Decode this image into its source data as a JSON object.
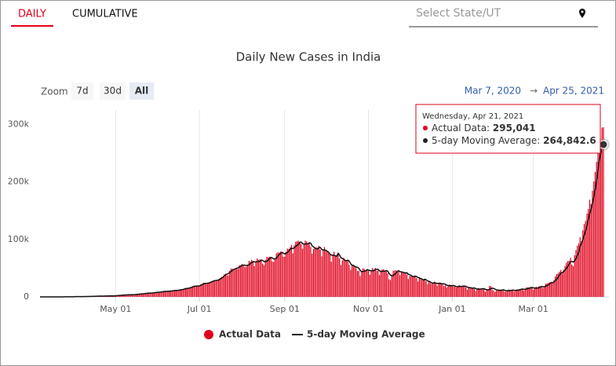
{
  "tabs": {
    "items": [
      "DAILY",
      "CUMULATIVE"
    ],
    "active": 0
  },
  "search": {
    "placeholder": "Select State/UT"
  },
  "chart_data": {
    "type": "bar",
    "title": "Daily New Cases in India",
    "range_selector": {
      "zoom_label": "Zoom",
      "buttons": [
        "7d",
        "30d",
        "All"
      ],
      "active": 2,
      "from": "Mar 7, 2020",
      "separator": "→",
      "to": "Apr 25, 2021"
    },
    "xlim": [
      "2020-03-07",
      "2021-04-25"
    ],
    "xticks": [
      {
        "value": "2020-05-01",
        "label": "May 01"
      },
      {
        "value": "2020-07-01",
        "label": "Jul 01"
      },
      {
        "value": "2020-09-01",
        "label": "Sep 01"
      },
      {
        "value": "2020-11-01",
        "label": "Nov 01"
      },
      {
        "value": "2021-01-01",
        "label": "Jan 01"
      },
      {
        "value": "2021-03-01",
        "label": "Mar 01"
      }
    ],
    "ylim": [
      0,
      325000
    ],
    "yticks": [
      0,
      {
        "value": 100000,
        "label": "100k"
      },
      {
        "value": 200000,
        "label": "200k"
      },
      {
        "value": 300000,
        "label": "300k"
      }
    ],
    "grid": true,
    "series": [
      {
        "name": "Actual Data",
        "color": "#e0001b",
        "values": [
          3,
          1,
          5,
          9,
          18,
          12,
          11,
          14,
          12,
          24,
          22,
          28,
          52,
          59,
          76,
          82,
          96,
          74,
          87,
          88,
          160,
          110,
          180,
          140,
          230,
          400,
          550,
          520,
          600,
          480,
          620,
          530,
          580,
          610,
          700,
          900,
          850,
          880,
          1100,
          1000,
          1300,
          1100,
          1250,
          1450,
          1550,
          1300,
          1450,
          1650,
          1800,
          1700,
          1650,
          1600,
          1550,
          1850,
          1750,
          1900,
          2400,
          2600,
          3000,
          2600,
          3600,
          3300,
          3300,
          3600,
          4200,
          3600,
          3500,
          3700,
          3900,
          3900,
          4900,
          5000,
          5200,
          4600,
          5600,
          5500,
          6100,
          6600,
          6800,
          6500,
          6400,
          6300,
          7200,
          7900,
          8000,
          8300,
          8200,
          8000,
          8800,
          9300,
          9900,
          9900,
          9900,
          9000,
          9900,
          11000,
          10000,
          11400,
          11900,
          11500,
          11000,
          10700,
          13300,
          12900,
          13600,
          14700,
          15400,
          14800,
          14900,
          16000,
          17300,
          18600,
          19900,
          19400,
          18500,
          18600,
          19100,
          21900,
          22700,
          24800,
          24200,
          22300,
          22900,
          24900,
          26500,
          27000,
          28600,
          28700,
          28500,
          28500,
          29400,
          32700,
          34900,
          34900,
          38900,
          40400,
          37100,
          37700,
          45600,
          49300,
          48900,
          48700,
          47700,
          50000,
          48500,
          55100,
          55000,
          57100,
          54700,
          52100,
          52500,
          56300,
          62500,
          61500,
          64400,
          62100,
          53600,
          60900,
          66800,
          64500,
          65000,
          63500,
          57900,
          55100,
          64500,
          69700,
          68900,
          69900,
          69200,
          61400,
          60900,
          67100,
          75800,
          77300,
          77000,
          78800,
          78500,
          69900,
          69900,
          78400,
          83900,
          83300,
          86400,
          90600,
          75800,
          89700,
          95700,
          96600,
          97600,
          94400,
          92100,
          83800,
          90100,
          97900,
          96400,
          93300,
          92600,
          86900,
          75100,
          83300,
          86500,
          86100,
          85400,
          88600,
          82200,
          70600,
          80500,
          86800,
          81500,
          79500,
          75800,
          74400,
          61300,
          72000,
          78500,
          70500,
          73300,
          74400,
          66700,
          55300,
          63500,
          67700,
          63400,
          62200,
          61900,
          55700,
          46800,
          54000,
          55800,
          53400,
          50100,
          45100,
          45000,
          36400,
          43900,
          49900,
          48600,
          46900,
          46800,
          45200,
          38300,
          46300,
          50200,
          47600,
          50400,
          45700,
          45600,
          38000,
          44200,
          47900,
          48000,
          44700,
          44300,
          41100,
          30500,
          29200,
          38600,
          45500,
          45900,
          46200,
          45200,
          44000,
          37900,
          44400,
          43000,
          41300,
          41800,
          38800,
          31100,
          36600,
          35600,
          35500,
          36600,
          36600,
          32900,
          26600,
          32100,
          31600,
          29400,
          30000,
          30300,
          27100,
          22100,
          26400,
          24000,
          22900,
          22900,
          26600,
          24300,
          19600,
          23900,
          24700,
          23100,
          23000,
          18700,
          20100,
          16400,
          20500,
          21800,
          20000,
          19100,
          18200,
          18200,
          16500,
          18100,
          20300,
          18100,
          18100,
          18600,
          18600,
          16300,
          12600,
          15900,
          16900,
          15600,
          15200,
          13800,
          10100,
          13800,
          15200,
          14500,
          14300,
          14200,
          13200,
          9100,
          12700,
          11700,
          18900,
          18900,
          13100,
          11300,
          8600,
          11000,
          13000,
          12900,
          12400,
          11700,
          12100,
          9100,
          9100,
          11100,
          12900,
          12100,
          12100,
          11600,
          9100,
          11600,
          12900,
          13200,
          13800,
          14200,
          14300,
          10600,
          13700,
          16700,
          16700,
          16600,
          16500,
          15500,
          12300,
          14900,
          17400,
          16800,
          18300,
          18700,
          18600,
          15400,
          17900,
          22900,
          23300,
          24900,
          25300,
          26300,
          24400,
          28900,
          35900,
          39700,
          40900,
          43800,
          46900,
          40700,
          47300,
          53500,
          59100,
          62300,
          62700,
          68000,
          56200,
          53500,
          72300,
          81500,
          89100,
          93200,
          103600,
          96900,
          115700,
          126800,
          131900,
          144800,
          152900,
          168900,
          161700,
          184400,
          200700,
          217400,
          234700,
          261400,
          273800,
          259200,
          294300,
          295041
        ]
      },
      {
        "name": "5-day Moving Average",
        "color": "#111111",
        "values": [
          4,
          5,
          7,
          9,
          10,
          11,
          13,
          16,
          17,
          20,
          28,
          37,
          47,
          60,
          73,
          77,
          83,
          85,
          101,
          104,
          124,
          140,
          158,
          166,
          200,
          380,
          460,
          520,
          550,
          560,
          560,
          570,
          590,
          630,
          670,
          740,
          800,
          880,
          930,
          1030,
          1080,
          1140,
          1210,
          1290,
          1330,
          1400,
          1450,
          1480,
          1560,
          1610,
          1640,
          1710,
          1680,
          1700,
          1700,
          1800,
          2100,
          2400,
          2600,
          2700,
          3000,
          3100,
          3300,
          3400,
          3600,
          3700,
          3700,
          3800,
          3800,
          4000,
          4300,
          4500,
          4800,
          5000,
          5300,
          5400,
          5600,
          5900,
          6300,
          6500,
          6600,
          6700,
          6800,
          7200,
          7500,
          7900,
          8100,
          8200,
          8500,
          8900,
          9200,
          9600,
          9500,
          9700,
          9900,
          10100,
          10400,
          10700,
          11100,
          11300,
          11300,
          11600,
          11900,
          12400,
          12900,
          13400,
          14300,
          14700,
          15000,
          15600,
          16200,
          17300,
          18000,
          18600,
          18800,
          19000,
          19000,
          20000,
          21400,
          22600,
          23200,
          23600,
          23800,
          24200,
          25100,
          26400,
          27200,
          28000,
          28600,
          28900,
          29500,
          30900,
          32200,
          33800,
          36300,
          38100,
          39400,
          40600,
          42100,
          44300,
          46300,
          47600,
          48800,
          49700,
          50400,
          51600,
          53200,
          54900,
          55300,
          55200,
          54600,
          54600,
          55600,
          57600,
          59400,
          61300,
          60800,
          60700,
          61500,
          61700,
          62000,
          64100,
          63500,
          61200,
          61200,
          62100,
          63600,
          66600,
          68500,
          67800,
          66000,
          66000,
          67100,
          70400,
          73600,
          75200,
          77500,
          76300,
          74500,
          75900,
          77200,
          79400,
          82400,
          84500,
          84000,
          85200,
          87700,
          89600,
          91100,
          94800,
          95300,
          92900,
          91600,
          91900,
          92100,
          92300,
          94000,
          93400,
          88900,
          87000,
          84900,
          83600,
          83300,
          85800,
          85800,
          82600,
          81500,
          81700,
          80900,
          79500,
          77700,
          74500,
          72600,
          72600,
          72400,
          71300,
          70700,
          75700,
          72700,
          68000,
          66800,
          65500,
          63300,
          62800,
          63800,
          62100,
          57600,
          55100,
          54900,
          53100,
          51900,
          51600,
          49900,
          46000,
          44100,
          44000,
          44800,
          45200,
          47300,
          46600,
          45800,
          45400,
          45500,
          45500,
          47700,
          47900,
          47900,
          45300,
          44400,
          44300,
          44700,
          44700,
          45800,
          44800,
          40900,
          37900,
          36800,
          37000,
          39100,
          41100,
          44300,
          45400,
          43800,
          43600,
          42900,
          42100,
          41700,
          41900,
          39200,
          38700,
          37300,
          35500,
          35300,
          36200,
          35500,
          33700,
          33200,
          32000,
          30900,
          29400,
          30700,
          29600,
          27800,
          27200,
          26000,
          24500,
          23700,
          24600,
          24100,
          23300,
          23500,
          23800,
          23100,
          22800,
          22700,
          21900,
          20300,
          19700,
          19500,
          19400,
          19700,
          19900,
          18800,
          18000,
          17700,
          18200,
          18200,
          18200,
          18700,
          18700,
          18300,
          16900,
          16400,
          16100,
          15500,
          15200,
          15600,
          14500,
          13700,
          13600,
          13500,
          13600,
          14400,
          14300,
          13100,
          12700,
          12200,
          12900,
          14200,
          15100,
          14700,
          13600,
          12600,
          11700,
          11400,
          11400,
          11800,
          12200,
          11600,
          10900,
          10600,
          10800,
          11000,
          11200,
          11900,
          11500,
          11300,
          11500,
          11700,
          12100,
          13000,
          13700,
          13200,
          13300,
          13900,
          14400,
          14900,
          16000,
          16400,
          15700,
          15400,
          15400,
          15300,
          15900,
          17200,
          18000,
          17600,
          17800,
          18700,
          19600,
          20800,
          22900,
          24500,
          24800,
          25900,
          28200,
          31100,
          33900,
          37800,
          41400,
          42000,
          43900,
          46400,
          49500,
          52600,
          56900,
          61100,
          61600,
          60600,
          62500,
          66600,
          71700,
          77700,
          87900,
          92900,
          99700,
          107300,
          114500,
          123900,
          134500,
          145100,
          152400,
          162500,
          173700,
          186700,
          201800,
          219700,
          237600,
          249300,
          262000,
          264842.6
        ]
      }
    ],
    "tooltip": {
      "title": "Wednesday, Apr 21, 2021",
      "value_labels": [
        "295,041",
        "264,842.6"
      ]
    }
  }
}
